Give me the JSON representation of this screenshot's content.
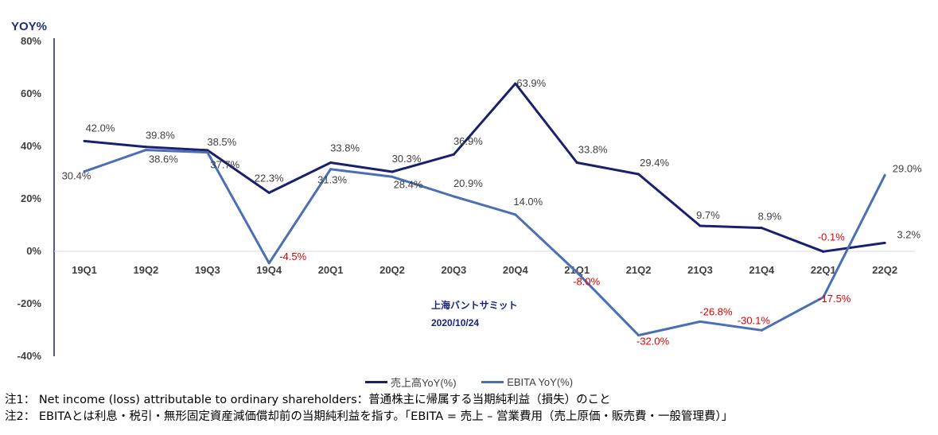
{
  "chart_data": {
    "type": "line",
    "y_title": "YOY%",
    "ylim": [
      -40,
      80
    ],
    "yticks": [
      "80%",
      "60%",
      "40%",
      "20%",
      "0%",
      "-20%",
      "-40%"
    ],
    "categories": [
      "19Q1",
      "19Q2",
      "19Q3",
      "19Q4",
      "20Q1",
      "20Q2",
      "20Q3",
      "20Q4",
      "21Q1",
      "21Q2",
      "21Q3",
      "21Q4",
      "22Q1",
      "22Q2"
    ],
    "series": [
      {
        "name": "売上高YoY(%)",
        "color": "#1a1f6e",
        "values": [
          42.0,
          39.8,
          38.5,
          22.3,
          33.8,
          30.3,
          36.9,
          63.9,
          33.8,
          29.4,
          9.7,
          8.9,
          -0.1,
          3.2
        ],
        "labels": [
          "42.0%",
          "39.8%",
          "38.5%",
          "22.3%",
          "33.8%",
          "30.3%",
          "36.9%",
          "63.9%",
          "33.8%",
          "29.4%",
          "9.7%",
          "8.9%",
          "-0.1%",
          "3.2%"
        ]
      },
      {
        "name": "EBITA YoY(%)",
        "color": "#4a6fb5",
        "values": [
          30.4,
          38.6,
          37.7,
          -4.5,
          31.3,
          28.4,
          20.9,
          14.0,
          -8.0,
          -32.0,
          -26.8,
          -30.1,
          -17.5,
          29.0
        ],
        "labels": [
          "30.4%",
          "38.6%",
          "37.7%",
          "-4.5%",
          "31.3%",
          "28.4%",
          "20.9%",
          "14.0%",
          "-8.0%",
          "-32.0%",
          "-26.8%",
          "-30.1%",
          "-17.5%",
          "29.0%"
        ]
      }
    ],
    "legend_position": "bottom-center",
    "grid": false,
    "negative_label_color": "#e00000",
    "label_color": "#404040"
  },
  "watermark": {
    "line1": "上海バントサミット",
    "line2": "2020/10/24"
  },
  "notes": [
    "注1： Net income (loss) attributable to ordinary shareholders：普通株主に帰属する当期純利益（損失）のこと",
    "注2： EBITAとは利息・税引・無形固定資産減価償却前の当期純利益を指す。「EBITA = 売上 – 営業費用（売上原価・販売費・一般管理費）」"
  ]
}
